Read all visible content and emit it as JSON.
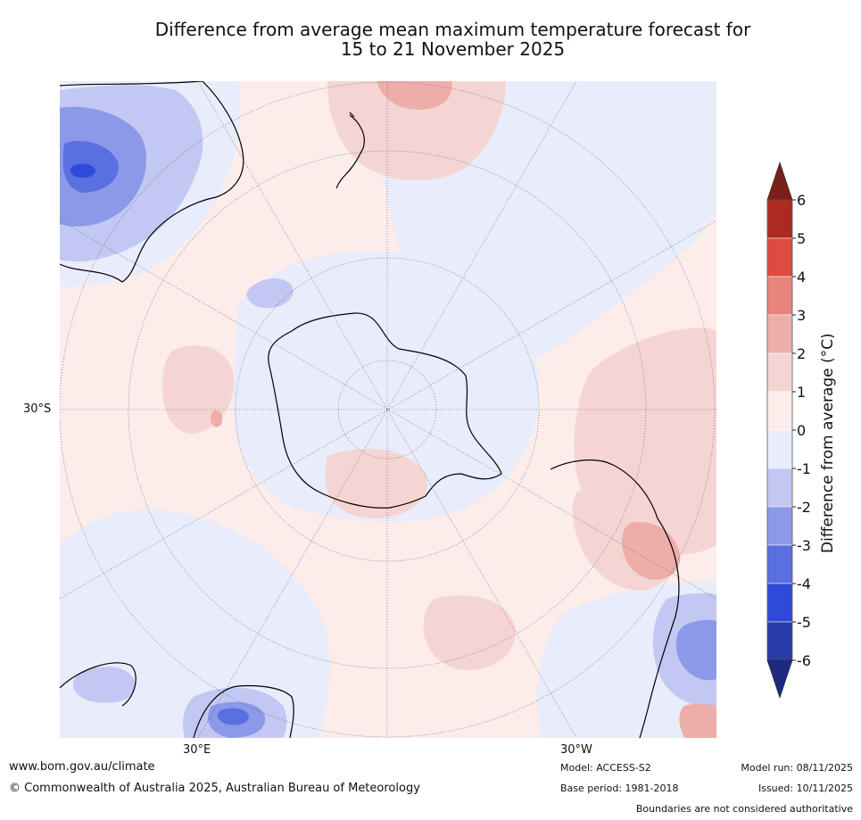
{
  "title": {
    "line1": "Difference from average mean maximum temperature forecast for",
    "line2": "15 to 21 November 2025"
  },
  "map": {
    "projection": "south-polar-stereographic",
    "lat_label": "30°S",
    "lon_labels": [
      "30°E",
      "30°W"
    ]
  },
  "colorbar": {
    "label": "Difference from average (°C)",
    "ticks": [
      "6",
      "5",
      "4",
      "3",
      "2",
      "1",
      "0",
      "-1",
      "-2",
      "-3",
      "-4",
      "-5",
      "-6"
    ],
    "colors": {
      "above_6": "#7a1f1a",
      "5_to_6": "#ad2a22",
      "4_to_5": "#dc4c40",
      "3_to_4": "#e8857c",
      "2_to_3": "#edaea8",
      "1_to_2": "#f5d5d3",
      "0_to_1": "#fcecea",
      "m1_to_0": "#e9ecfb",
      "m2_to_m1": "#c2c8f2",
      "m3_to_m2": "#8b99e9",
      "m4_to_m3": "#5a6fe0",
      "m5_to_m4": "#2f4ad8",
      "m6_to_m5": "#2a3ca8",
      "below_m6": "#1e2a80"
    }
  },
  "footer": {
    "website": "www.bom.gov.au/climate",
    "copyright": "© Commonwealth of Australia 2025, Australian Bureau of Meteorology",
    "model": "Model: ACCESS-S2",
    "base_period": "Base period: 1981-2018",
    "model_run": "Model run: 08/11/2025",
    "issued": "Issued: 10/11/2025",
    "disclaimer": "Boundaries are not considered authoritative"
  }
}
